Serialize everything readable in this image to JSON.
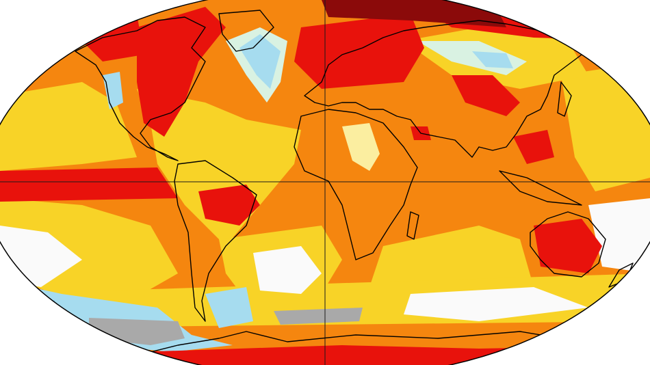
{
  "map": {
    "projection": "robinson",
    "type": "global-surface-temperature-anomaly",
    "palette": {
      "darkred": "#8b0a0a",
      "red": "#e8120c",
      "orange": "#f5860f",
      "lightorange": "#f7a81a",
      "yellow": "#f8d327",
      "paleyellow": "#fbeea0",
      "white": "#fafafa",
      "mint": "#d9f2e2",
      "lightblue": "#a6dcef",
      "blue": "#5fb3e6",
      "gray": "#a9a9a9",
      "coast": "#000000",
      "grid": "#1a1a1a"
    },
    "gridlines": {
      "equator": true,
      "prime_meridian": true
    }
  }
}
